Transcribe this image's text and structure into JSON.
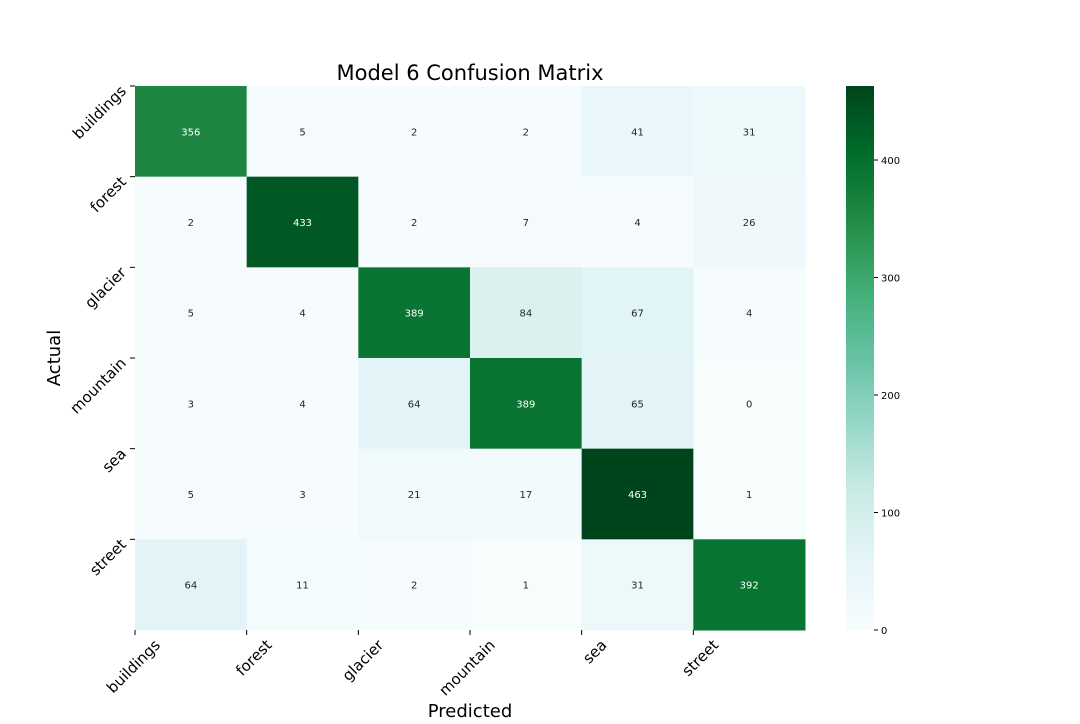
{
  "chart_data": {
    "type": "heatmap",
    "title": "Model 6 Confusion Matrix",
    "xlabel": "Predicted",
    "ylabel": "Actual",
    "x_categories": [
      "buildings",
      "forest",
      "glacier",
      "mountain",
      "sea",
      "street"
    ],
    "y_categories": [
      "buildings",
      "forest",
      "glacier",
      "mountain",
      "sea",
      "street"
    ],
    "values": [
      [
        356,
        5,
        2,
        2,
        41,
        31
      ],
      [
        2,
        433,
        2,
        7,
        4,
        26
      ],
      [
        5,
        4,
        389,
        84,
        67,
        4
      ],
      [
        3,
        4,
        64,
        389,
        65,
        0
      ],
      [
        5,
        3,
        21,
        17,
        463,
        1
      ],
      [
        64,
        11,
        2,
        1,
        31,
        392
      ]
    ],
    "colormap": "BuGn",
    "color_range": [
      0,
      463
    ],
    "colorbar_ticks": [
      0,
      100,
      200,
      300,
      400
    ],
    "colorbar_tick_labels": [
      "0",
      "100",
      "200",
      "300",
      "400"
    ],
    "annotations": true,
    "grid": false
  }
}
